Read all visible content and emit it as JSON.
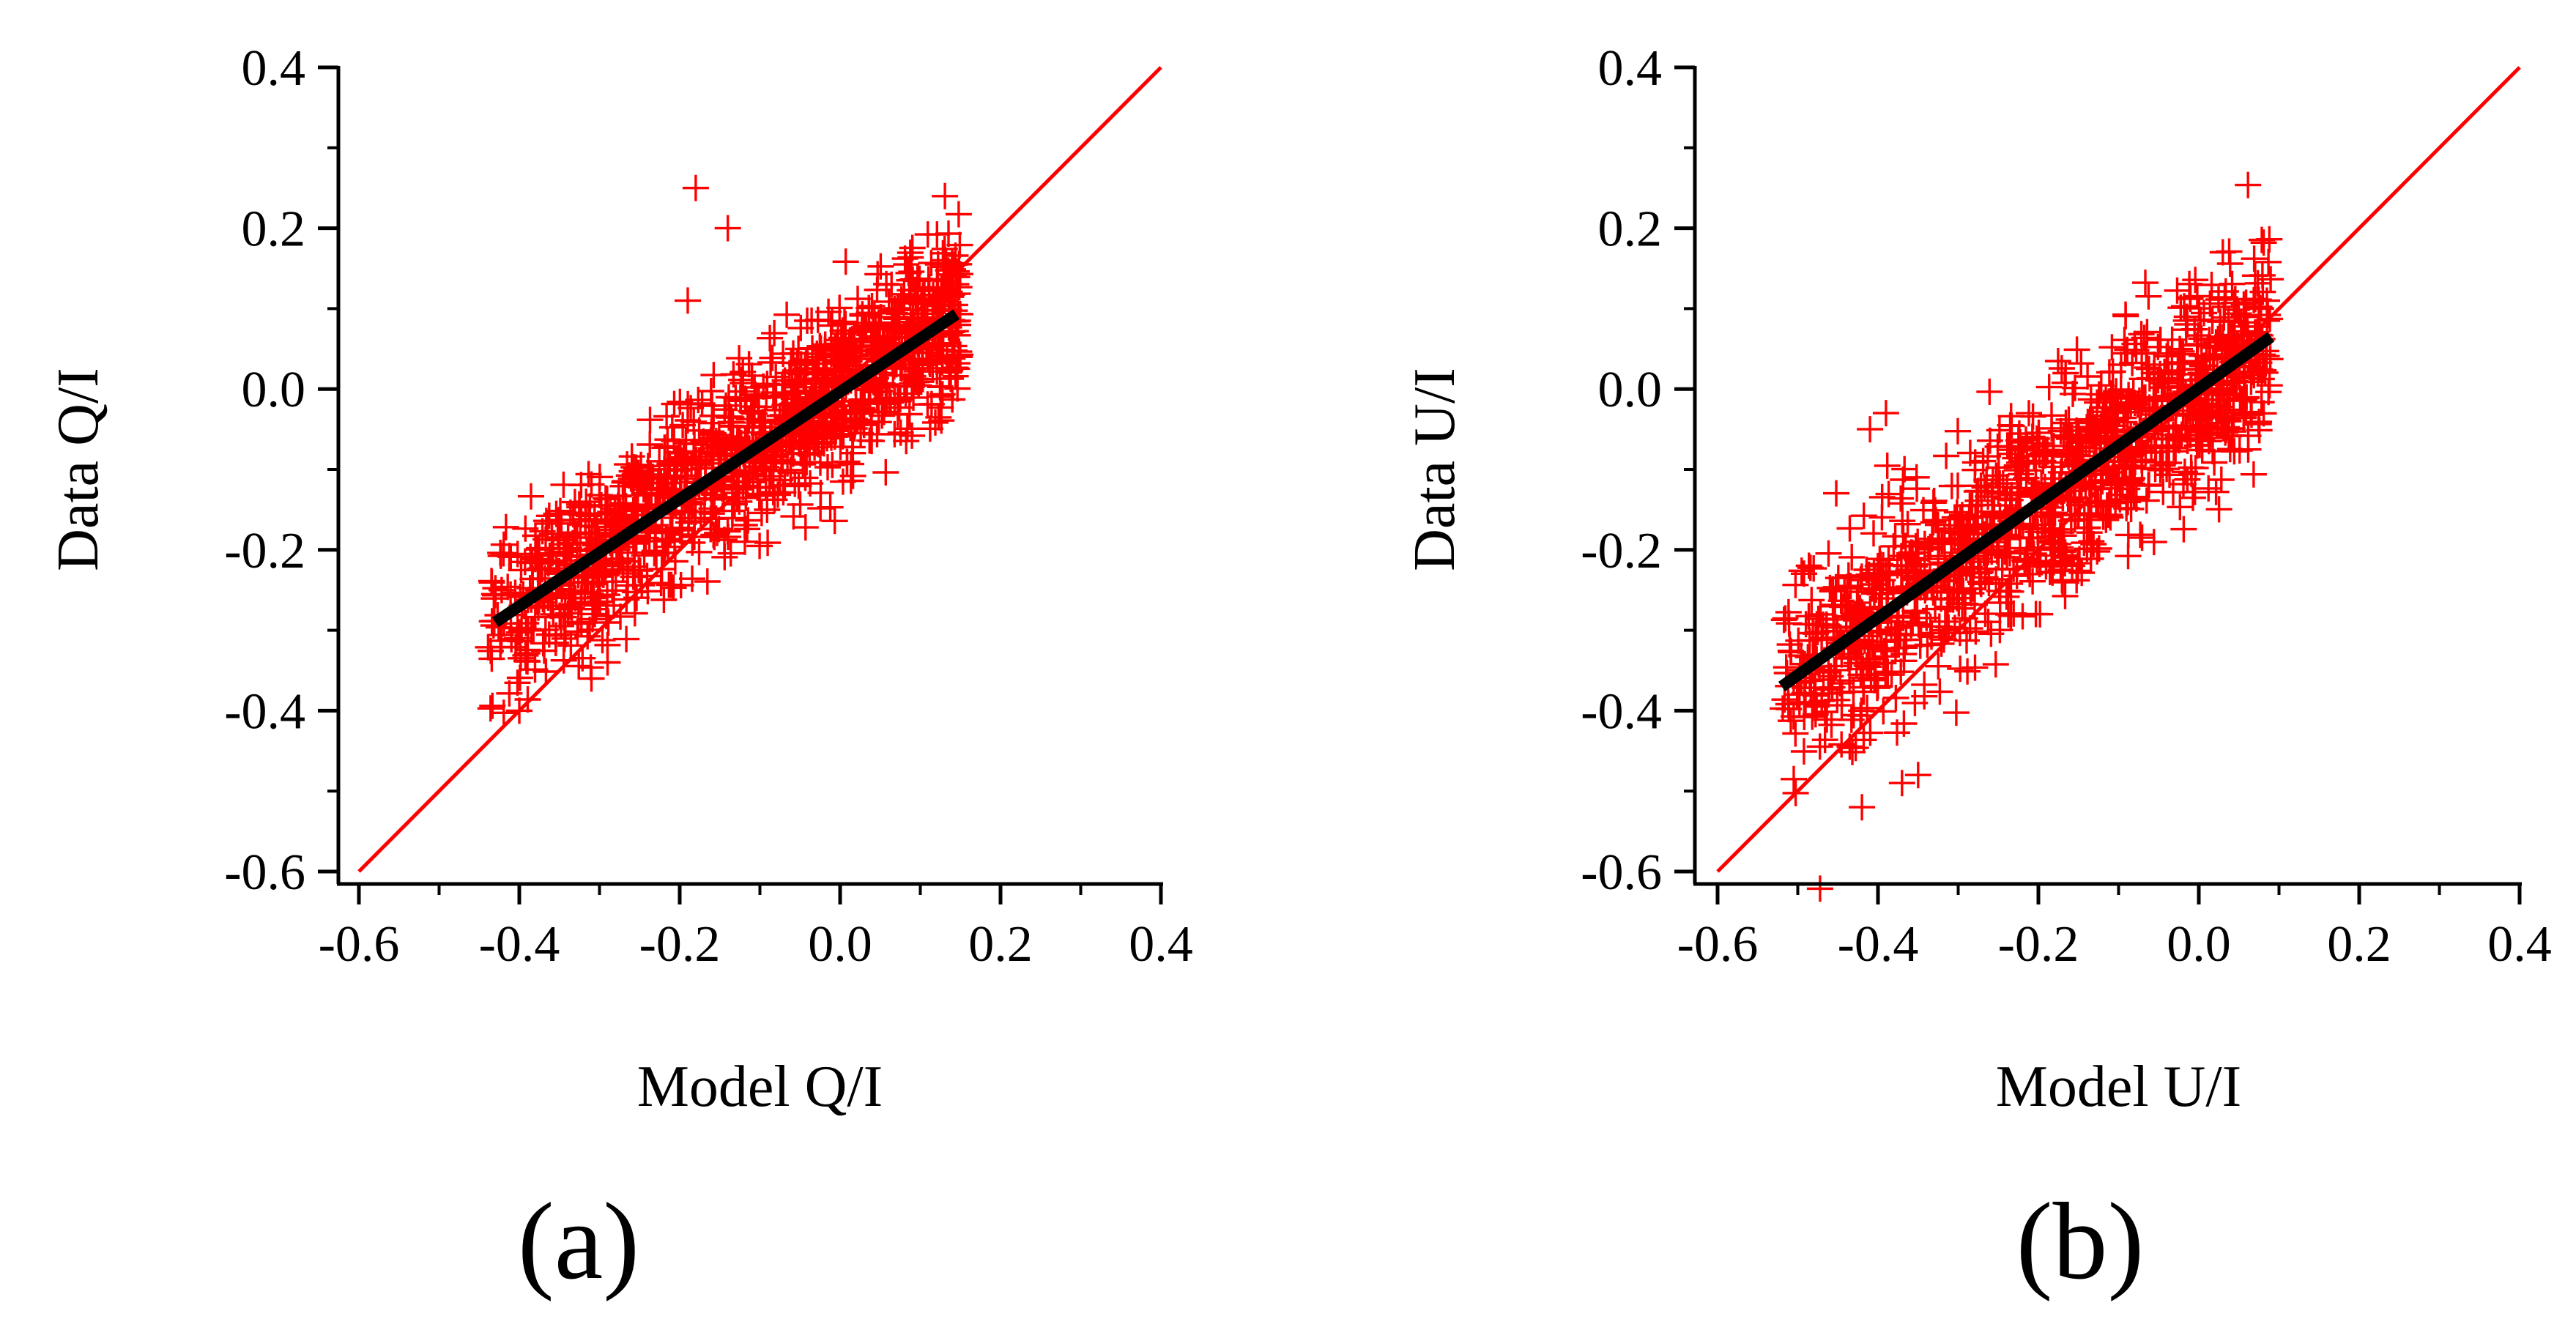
{
  "colors": {
    "points": "#ff0000",
    "identity_line": "#ff0000",
    "fit_line": "#000000",
    "axes": "#000000"
  },
  "chart_data": [
    {
      "type": "scatter",
      "panel_label": "(a)",
      "xlabel": "Model Q/I",
      "ylabel": "Data Q/I",
      "xlim": [
        -0.6,
        0.4
      ],
      "ylim": [
        -0.6,
        0.4
      ],
      "x_ticks": [
        "-0.6",
        "-0.4",
        "-0.2",
        "0.0",
        "0.2",
        "0.4"
      ],
      "y_ticks": [
        "-0.6",
        "-0.4",
        "-0.2",
        "0.0",
        "0.2",
        "0.4"
      ],
      "marker": "+",
      "cloud": {
        "x_range": [
          -0.44,
          0.15
        ],
        "slope": 0.67,
        "intercept": 0.0,
        "spread": 0.055,
        "n_points": 1300
      },
      "fit_line": {
        "x": [
          -0.43,
          0.145
        ],
        "y": [
          -0.29,
          0.093
        ]
      },
      "identity_line": {
        "x": [
          -0.6,
          0.4
        ],
        "y": [
          -0.6,
          0.4
        ]
      },
      "notable_points": [
        {
          "x": -0.18,
          "y": 0.25
        },
        {
          "x": -0.14,
          "y": 0.2
        },
        {
          "x": -0.19,
          "y": 0.11
        },
        {
          "x": -0.4,
          "y": -0.4
        },
        {
          "x": -0.31,
          "y": -0.36
        },
        {
          "x": -0.29,
          "y": -0.34
        }
      ]
    },
    {
      "type": "scatter",
      "panel_label": "(b)",
      "xlabel": "Model U/I",
      "ylabel": "Data U/I",
      "xlim": [
        -0.6,
        0.4
      ],
      "ylim": [
        -0.6,
        0.4
      ],
      "x_ticks": [
        "-0.6",
        "-0.4",
        "-0.2",
        "0.0",
        "0.2",
        "0.4"
      ],
      "y_ticks": [
        "-0.6",
        "-0.4",
        "-0.2",
        "0.0",
        "0.2",
        "0.4"
      ],
      "marker": "+",
      "cloud": {
        "x_range": [
          -0.52,
          0.09
        ],
        "slope": 0.71,
        "intercept": 0.0,
        "spread": 0.065,
        "n_points": 1300
      },
      "fit_line": {
        "x": [
          -0.52,
          0.09
        ],
        "y": [
          -0.37,
          0.065
        ]
      },
      "identity_line": {
        "x": [
          -0.6,
          0.4
        ],
        "y": [
          -0.6,
          0.4
        ]
      },
      "notable_points": [
        {
          "x": -0.42,
          "y": -0.52
        },
        {
          "x": -0.37,
          "y": -0.49
        },
        {
          "x": -0.35,
          "y": -0.48
        },
        {
          "x": -0.41,
          "y": -0.05
        },
        {
          "x": -0.39,
          "y": -0.03
        },
        {
          "x": 0.03,
          "y": 0.17
        }
      ]
    }
  ]
}
